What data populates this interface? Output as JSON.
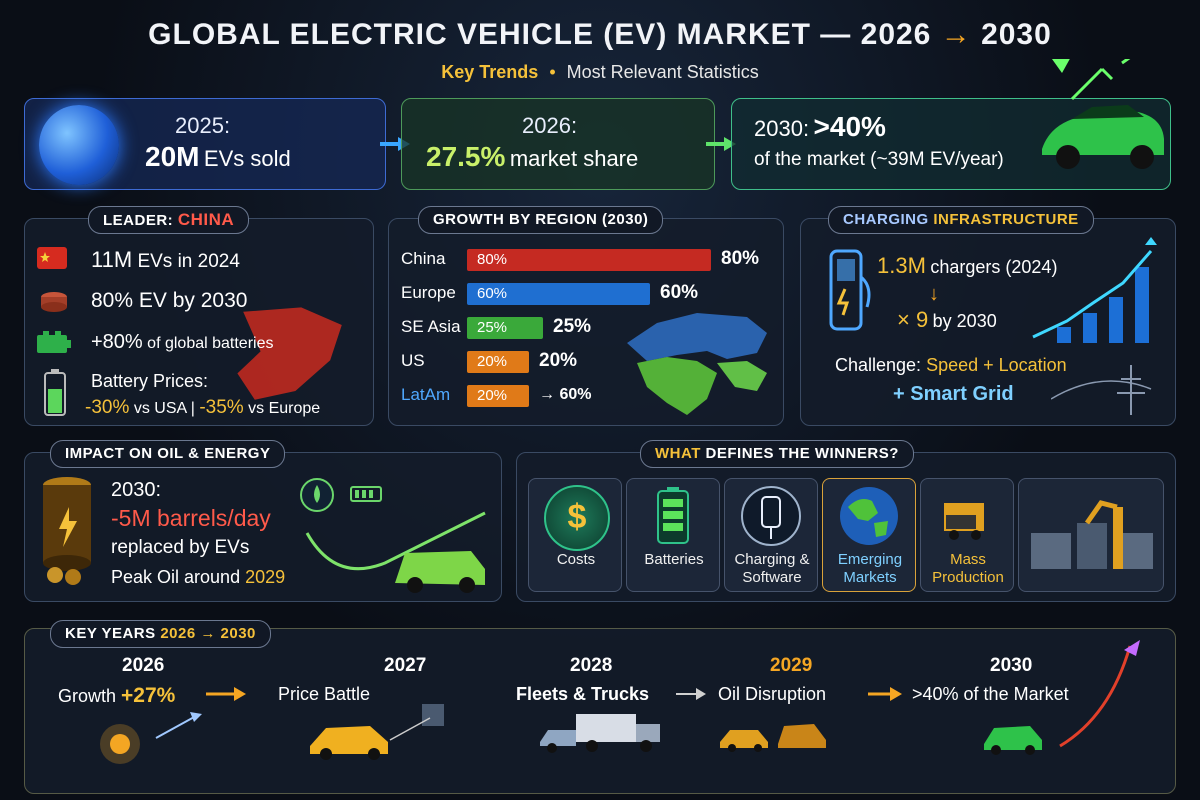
{
  "header": {
    "title_main": "GLOBAL ELECTRIC VEHICLE (EV) MARKET — 2026",
    "title_arrow": "→",
    "title_end": "2030",
    "subtitle_key": "Key Trends",
    "subtitle_dot": "•",
    "subtitle_rest": "Most Relevant Statistics"
  },
  "top": {
    "y2025_label": "2025:",
    "y2025_value": "20M",
    "y2025_rest": "EVs sold",
    "y2026_label": "2026:",
    "y2026_value": "27.5%",
    "y2026_rest": "market share",
    "y2030_label": "2030:",
    "y2030_value": ">40%",
    "y2030_rest": "of the market (~39M EV/year)"
  },
  "leader": {
    "tab_prefix": "LEADER:",
    "tab_country": "CHINA",
    "l1_val": "11M",
    "l1_rest": "EVs in 2024",
    "l2": "80% EV by 2030",
    "l3_val": "+80%",
    "l3_rest": "of global batteries",
    "l4": "Battery Prices:",
    "l5_a": "-30%",
    "l5_b": "vs USA |",
    "l5_c": "-35%",
    "l5_d": "vs Europe"
  },
  "region": {
    "tab": "GROWTH BY REGION (2030)",
    "rows": [
      {
        "name": "China",
        "inner": "80%",
        "value": "80%"
      },
      {
        "name": "Europe",
        "inner": "60%",
        "value": "60%"
      },
      {
        "name": "SE Asia",
        "inner": "25%",
        "value": "25%"
      },
      {
        "name": "US",
        "inner": "20%",
        "value": "20%"
      },
      {
        "name": "LatAm",
        "inner": "20%",
        "value": "→ 60%"
      }
    ]
  },
  "charging": {
    "tab_a": "CHARGING",
    "tab_b": "INFRASTRUCTURE",
    "chargers_val": "1.3M",
    "chargers_rest": "chargers (2024)",
    "down_arrow": "↓",
    "mult": "× 9",
    "mult_rest": "by 2030",
    "challenge_a": "Challenge:",
    "challenge_b": "Speed + Location",
    "smart_plus": "+",
    "smart": "Smart Grid"
  },
  "oil": {
    "tab": "IMPACT ON OIL & ENERGY",
    "year": "2030:",
    "value": "-5M barrels/day",
    "rest": "replaced by EVs",
    "peak_a": "Peak Oil around",
    "peak_b": "2029"
  },
  "winners": {
    "tab_a": "WHAT",
    "tab_b": "DEFINES THE WINNERS?",
    "items": [
      {
        "label": "Costs"
      },
      {
        "label": "Batteries"
      },
      {
        "label": "Charging & Software"
      },
      {
        "label": "Emerging Markets"
      },
      {
        "label": "Mass Production"
      }
    ]
  },
  "timeline": {
    "tab_a": "KEY YEARS",
    "tab_b": "2026 → 2030",
    "items": [
      {
        "year": "2026",
        "text_a": "Growth",
        "text_b": "+27%"
      },
      {
        "year": "2027",
        "text_a": "Price Battle",
        "text_b": ""
      },
      {
        "year": "2028",
        "text_a": "Fleets & Trucks",
        "text_b": ""
      },
      {
        "year": "2029",
        "text_a": "Oil Disruption",
        "text_b": ""
      },
      {
        "year": "2030",
        "text_a": ">40% of the Market",
        "text_b": ""
      }
    ]
  },
  "colors": {
    "accent_yellow": "#f5c13a",
    "accent_green": "#7ee36a",
    "accent_red": "#ff5a4a",
    "china_bar": "#c52a22",
    "europe_bar": "#1f6fd1",
    "seasia_bar": "#3aa93a",
    "us_bar": "#e07a18",
    "latam_bar": "#e07a18"
  }
}
